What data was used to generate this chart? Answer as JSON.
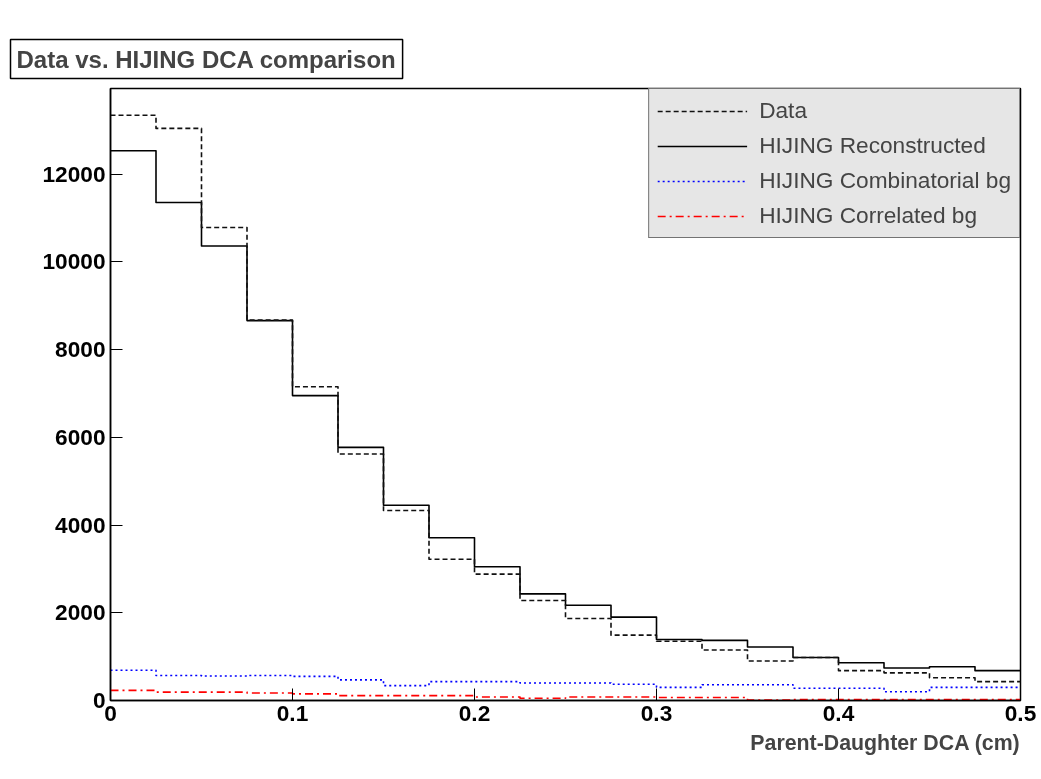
{
  "chart_data": {
    "type": "histogram",
    "title": "Data vs. HIJING DCA comparison",
    "xlabel": "Parent-Daughter DCA (cm)",
    "bins": [
      0,
      0.025,
      0.05,
      0.075,
      0.1,
      0.125,
      0.15,
      0.175,
      0.2,
      0.225,
      0.25,
      0.275,
      0.3,
      0.325,
      0.35,
      0.375,
      0.4,
      0.425,
      0.45,
      0.475,
      0.5
    ],
    "series": [
      {
        "name": "Data",
        "color": "#111111",
        "line_style": "dashed",
        "values": [
          13340,
          13040,
          10780,
          8670,
          7150,
          5620,
          4330,
          3220,
          2880,
          2280,
          1870,
          1490,
          1350,
          1150,
          900,
          980,
          680,
          630,
          520,
          430
        ]
      },
      {
        "name": "HIJING Reconstructed",
        "color": "#000000",
        "line_style": "solid",
        "values": [
          12530,
          11350,
          10360,
          8660,
          6950,
          5770,
          4450,
          3710,
          3050,
          2430,
          2170,
          1900,
          1390,
          1370,
          1220,
          980,
          860,
          740,
          770,
          680
        ]
      },
      {
        "name": "HIJING Combinatorial bg",
        "color": "#0000ff",
        "line_style": "dotted",
        "values": [
          690,
          570,
          560,
          570,
          550,
          470,
          340,
          430,
          430,
          400,
          400,
          370,
          300,
          360,
          360,
          280,
          280,
          200,
          300,
          300
        ]
      },
      {
        "name": "HIJING Correlated bg",
        "color": "#ff0000",
        "line_style": "dashdot",
        "values": [
          230,
          190,
          190,
          170,
          150,
          110,
          110,
          110,
          80,
          50,
          80,
          80,
          70,
          70,
          10,
          20,
          20,
          20,
          20,
          20
        ]
      }
    ],
    "xlim": [
      0,
      0.5
    ],
    "xticks": [
      0,
      0.1,
      0.2,
      0.3,
      0.4,
      0.5
    ],
    "ylim": [
      0,
      13950
    ],
    "yticks": [
      0,
      2000,
      4000,
      6000,
      8000,
      10000,
      12000
    ],
    "grid": false,
    "legend": "top right"
  }
}
